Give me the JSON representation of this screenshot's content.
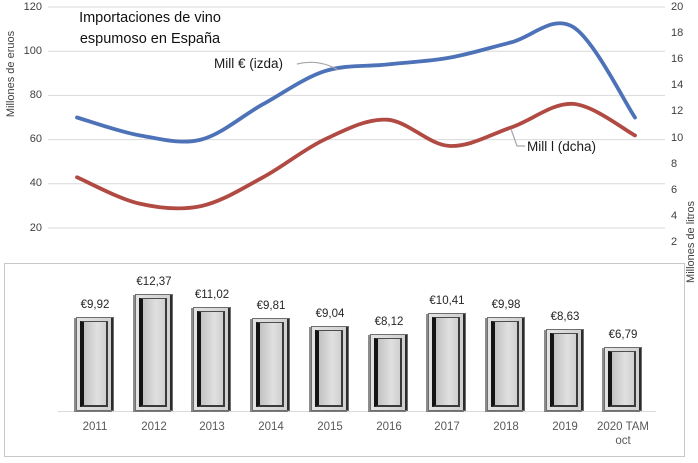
{
  "top_chart": {
    "title_line1": "Importaciones de vino",
    "title_line2": "espumoso en España",
    "left_axis_title": "Millones de eruos",
    "right_axis_title": "Millones de litros",
    "series_label_blue": "Mill € (izda)",
    "series_label_red": "Mill l (dcha)"
  },
  "chart_data": [
    {
      "type": "line",
      "title": "Importaciones de vino espumoso en España",
      "x": [
        2011,
        2012,
        2013,
        2014,
        2015,
        2016,
        2017,
        2018,
        2019,
        2020
      ],
      "series": [
        {
          "name": "Mill € (izda)",
          "axis": "left",
          "color": "#4d72b8",
          "values": [
            70,
            62,
            60,
            76,
            91,
            94,
            97,
            104,
            111,
            70
          ]
        },
        {
          "name": "Mill l (dcha)",
          "axis": "right",
          "color": "#b04a42",
          "values": [
            7.0,
            5.0,
            4.8,
            7.0,
            9.9,
            11.4,
            9.4,
            10.8,
            12.6,
            10.2
          ]
        }
      ],
      "left_axis": {
        "title": "Millones de eruos",
        "ticks": [
          120,
          100,
          80,
          60,
          40,
          20
        ],
        "range": [
          0,
          120
        ]
      },
      "right_axis": {
        "title": "Millones de litros",
        "ticks": [
          20,
          18,
          16,
          14,
          12,
          10,
          8,
          6,
          4,
          2
        ],
        "range": [
          0,
          20
        ]
      },
      "grid": true,
      "smooth": true,
      "legend_position": "inline-annotations"
    },
    {
      "type": "bar",
      "categories": [
        "2011",
        "2012",
        "2013",
        "2014",
        "2015",
        "2016",
        "2017",
        "2018",
        "2019",
        "2020 TAM oct"
      ],
      "values": [
        9.92,
        12.37,
        11.02,
        9.81,
        9.04,
        8.12,
        10.41,
        9.98,
        8.63,
        6.79
      ],
      "labels": [
        "€9,92",
        "€12,37",
        "€11,02",
        "€9,81",
        "€9,04",
        "€8,12",
        "€10,41",
        "€9,98",
        "€8,63",
        "€6,79"
      ],
      "title": "",
      "xlabel": "",
      "ylabel": "",
      "ylim": [
        0,
        14
      ],
      "grid": false
    }
  ],
  "colors": {
    "blue_line": "#4d72b8",
    "red_line": "#b04a42",
    "gridline": "#d9d9d9",
    "leader_line": "#a6a6a6",
    "bar_fill": "#d6d6d6",
    "bar_frame": "#1a1a1a",
    "panel_border": "#c8c8c8",
    "tick_text": "#404040",
    "category_text": "#595959"
  }
}
